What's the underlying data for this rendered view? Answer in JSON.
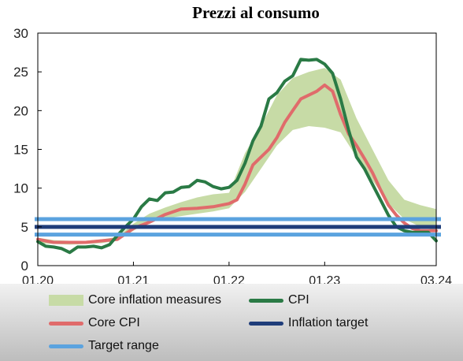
{
  "chart_data": {
    "type": "line",
    "title": "Prezzi al consumo",
    "xlabel": "",
    "ylabel": "",
    "xlim": [
      0,
      50
    ],
    "ylim": [
      0,
      30
    ],
    "y_ticks": [
      0,
      5,
      10,
      15,
      20,
      25,
      30
    ],
    "x_ticks": [
      {
        "t": 0,
        "label": "01.20"
      },
      {
        "t": 12,
        "label": "01.21"
      },
      {
        "t": 24,
        "label": "01.22"
      },
      {
        "t": 36,
        "label": "01.23"
      },
      {
        "t": 50,
        "label": "03.24"
      }
    ],
    "grid": false,
    "legend_position": "bottom",
    "band": {
      "name": "Core inflation measures",
      "color": "#c7dba6",
      "points": [
        [
          0,
          2.9,
          3.6
        ],
        [
          2,
          2.8,
          3.3
        ],
        [
          4,
          2.7,
          3.2
        ],
        [
          6,
          2.8,
          3.2
        ],
        [
          8,
          2.9,
          3.4
        ],
        [
          10,
          3.2,
          3.7
        ],
        [
          12,
          4.5,
          5.4
        ],
        [
          14,
          5.7,
          6.7
        ],
        [
          16,
          6.1,
          7.5
        ],
        [
          18,
          6.4,
          8.2
        ],
        [
          20,
          6.7,
          8.8
        ],
        [
          22,
          7.0,
          9.2
        ],
        [
          24,
          7.4,
          9.4
        ],
        [
          26,
          9.5,
          14.5
        ],
        [
          28,
          12.5,
          18.0
        ],
        [
          30,
          15.5,
          22.0
        ],
        [
          32,
          17.5,
          24.2
        ],
        [
          34,
          18.0,
          25.0
        ],
        [
          36,
          17.8,
          25.5
        ],
        [
          38,
          17.2,
          24.0
        ],
        [
          40,
          14.0,
          19.0
        ],
        [
          42,
          11.0,
          15.0
        ],
        [
          44,
          8.0,
          11.0
        ],
        [
          46,
          6.0,
          8.5
        ],
        [
          48,
          5.0,
          7.8
        ],
        [
          50,
          4.5,
          7.3
        ]
      ]
    },
    "series": [
      {
        "name": "CPI",
        "color": "#2a7a45",
        "points": [
          [
            0,
            3.1
          ],
          [
            1,
            2.5
          ],
          [
            2,
            2.4
          ],
          [
            3,
            2.2
          ],
          [
            4,
            1.7
          ],
          [
            5,
            2.4
          ],
          [
            6,
            2.4
          ],
          [
            7,
            2.5
          ],
          [
            8,
            2.3
          ],
          [
            9,
            2.7
          ],
          [
            10,
            3.9
          ],
          [
            11,
            5.0
          ],
          [
            12,
            6.0
          ],
          [
            13,
            7.6
          ],
          [
            14,
            8.6
          ],
          [
            15,
            8.4
          ],
          [
            16,
            9.4
          ],
          [
            17,
            9.5
          ],
          [
            18,
            10.1
          ],
          [
            19,
            10.2
          ],
          [
            20,
            11.0
          ],
          [
            21,
            10.8
          ],
          [
            22,
            10.2
          ],
          [
            23,
            9.9
          ],
          [
            24,
            10.1
          ],
          [
            25,
            11.0
          ],
          [
            26,
            13.2
          ],
          [
            27,
            16.1
          ],
          [
            28,
            18.0
          ],
          [
            29,
            21.5
          ],
          [
            30,
            22.3
          ],
          [
            31,
            23.8
          ],
          [
            32,
            24.5
          ],
          [
            33,
            26.6
          ],
          [
            34,
            26.5
          ],
          [
            35,
            26.6
          ],
          [
            36,
            26.0
          ],
          [
            37,
            24.8
          ],
          [
            38,
            21.5
          ],
          [
            39,
            17.5
          ],
          [
            40,
            14.0
          ],
          [
            41,
            12.5
          ],
          [
            42,
            10.5
          ],
          [
            43,
            8.5
          ],
          [
            44,
            6.5
          ],
          [
            45,
            5.0
          ],
          [
            46,
            4.5
          ],
          [
            47,
            4.3
          ],
          [
            48,
            4.3
          ],
          [
            49,
            4.3
          ],
          [
            50,
            3.2
          ]
        ]
      },
      {
        "name": "Core CPI",
        "color": "#e06b6b",
        "points": [
          [
            0,
            3.4
          ],
          [
            2,
            3.0
          ],
          [
            4,
            3.0
          ],
          [
            6,
            3.0
          ],
          [
            8,
            3.2
          ],
          [
            10,
            3.4
          ],
          [
            12,
            4.8
          ],
          [
            14,
            5.6
          ],
          [
            16,
            6.6
          ],
          [
            18,
            7.3
          ],
          [
            20,
            7.4
          ],
          [
            22,
            7.6
          ],
          [
            24,
            8.0
          ],
          [
            25,
            8.5
          ],
          [
            26,
            10.5
          ],
          [
            27,
            13.0
          ],
          [
            28,
            14.0
          ],
          [
            29,
            15.0
          ],
          [
            30,
            16.5
          ],
          [
            31,
            18.5
          ],
          [
            32,
            20.0
          ],
          [
            33,
            21.5
          ],
          [
            34,
            22.0
          ],
          [
            35,
            22.5
          ],
          [
            36,
            23.3
          ],
          [
            37,
            22.5
          ],
          [
            38,
            19.5
          ],
          [
            39,
            17.0
          ],
          [
            40,
            15.5
          ],
          [
            41,
            13.8
          ],
          [
            42,
            12.0
          ],
          [
            43,
            9.8
          ],
          [
            44,
            7.8
          ],
          [
            45,
            6.5
          ],
          [
            46,
            5.5
          ],
          [
            47,
            4.8
          ],
          [
            48,
            4.5
          ],
          [
            49,
            4.5
          ],
          [
            50,
            4.5
          ]
        ]
      }
    ],
    "hlines": [
      {
        "name": "Target range",
        "value": 6,
        "color": "#5ba3df"
      },
      {
        "name": "Target range",
        "value": 4,
        "color": "#5ba3df"
      },
      {
        "name": "Inflation target",
        "value": 5,
        "color": "#1f3d7a"
      }
    ],
    "legend": [
      {
        "label": "Core inflation measures",
        "kind": "area",
        "color": "#c7dba6"
      },
      {
        "label": "CPI",
        "kind": "line",
        "color": "#2a7a45"
      },
      {
        "label": "Core CPI",
        "kind": "line",
        "color": "#e06b6b"
      },
      {
        "label": "Inflation target",
        "kind": "line",
        "color": "#1f3d7a"
      },
      {
        "label": "Target range",
        "kind": "line",
        "color": "#5ba3df"
      }
    ]
  }
}
